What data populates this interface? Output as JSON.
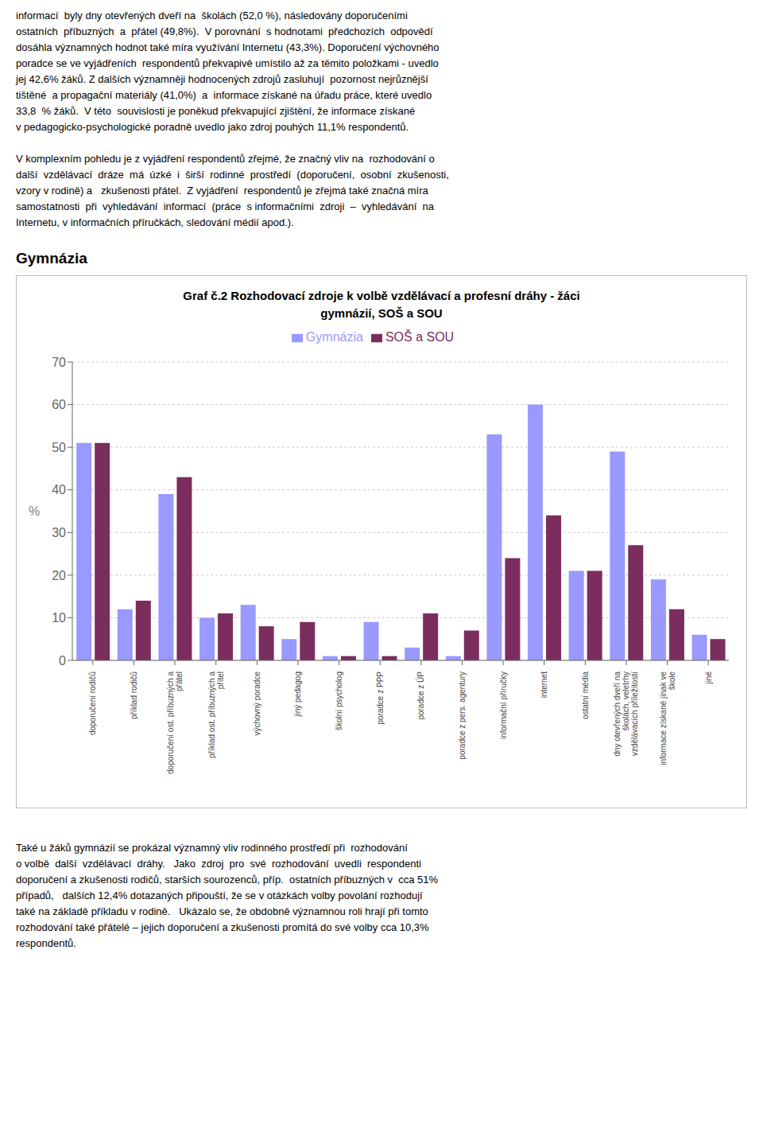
{
  "chart_data": {
    "type": "bar",
    "title": "Graf č.2 Rozhodovací zdroje k volbě vzdělávací a profesní dráhy - žáci\ngymnázií, SOŠ a SOU",
    "ylabel": "%",
    "categories": [
      "doporučení rodičů",
      "příklad rodičů",
      "doporučení ost. příbuzných a\npřátel",
      "příklad ost. příbuzných a\npřítel",
      "výchovný poradce",
      "jiný pedagog",
      "školní psycholog",
      "poradce z PPP",
      "poradce z ÚP",
      "poradce z pers. agentury",
      "informační příručky",
      "internet",
      "ostatní média",
      "dny otevřených dveří na\nškolách, veletrhy\nvzdělávacích příležitostí",
      "informace získané jinak ve\nškole",
      "jiné"
    ],
    "series": [
      {
        "name": "Gymnázia",
        "color": "#9999FF",
        "values": [
          51,
          12,
          39,
          10,
          13,
          5,
          1,
          9,
          3,
          1,
          53,
          60,
          21,
          49,
          19,
          6
        ]
      },
      {
        "name": "SOŠ a SOU",
        "color": "#7B2D5E",
        "values": [
          51,
          14,
          43,
          11,
          8,
          9,
          1,
          1,
          11,
          7,
          24,
          34,
          21,
          27,
          12,
          5
        ]
      }
    ],
    "ylim": [
      0,
      70
    ],
    "yticks": [
      0,
      10,
      20,
      30,
      40,
      50,
      60,
      70
    ],
    "grid": true,
    "legend": "top",
    "annotations": [
      "informací  byly dny otevřených dveří na  školách (52,0 %), následovány doporučeními\nostatních  příbuzných  a  přátel (49,8%).  V porovnání  s hodnotami  předchozích  odpovědí\ndosáhla významných hodnot také míra využívání Internetu (43,3%). Doporučení výchovného\nporadce se ve vyjádřeních  respondentů překvapivě umístilo až za těmito položkami - uvedlo\njej 42,6% žáků. Z dalších významněji hodnocených zdrojů zasluhují  pozornost nejrůznější\ntištěné  a propagační materiály (41,0%)  a  informace získané na úřadu práce, které uvedlo\n33,8  % žáků.  V této  souvislosti je poněkud překvapující zjištění, že informace získané\nv pedagogicko-psychologické poradně uvedlo jako zdroj pouhých 11,1% respondentů.",
      "V komplexním pohledu je z vyjádření respondentů zřejmé, že značný vliv na  rozhodování o\ndalší  vzdělávací  dráze  má  úzké  i  širší  rodinné  prostředí  (doporučení,  osobní  zkušenosti,\nvzory v rodině) a   zkušenosti přátel.  Z vyjádření  respondentů je zřejmá také značná míra\nsamostatnosti  při  vyhledávání  informací  (práce  s informačními  zdroji  –  vyhledávání  na\nInternetu, v informačních příručkách, sledování médií apod.).",
      "Gymnázia",
      "Také u žáků gymnázií se prokázal významný vliv rodinného prostředí při  rozhodování\no volbě  další  vzdělávací  dráhy.   Jako  zdroj  pro  své  rozhodování  uvedli  respondenti\ndoporučení a zkušenosti rodičů, starších sourozenců, příp.  ostatních příbuzných v  cca 51%\npřípadů,   dalších 12,4% dotazaných připouští, že se v otázkách volby povolání rozhodují\ntaké na základě příkladu v rodině.   Ukázalo se, že obdobně významnou roli hrají při tomto\nrozhodování také přátelé – jejich doporučení a zkušenosti promítá do své volby cca 10,3%\nrespondentů."
    ]
  }
}
